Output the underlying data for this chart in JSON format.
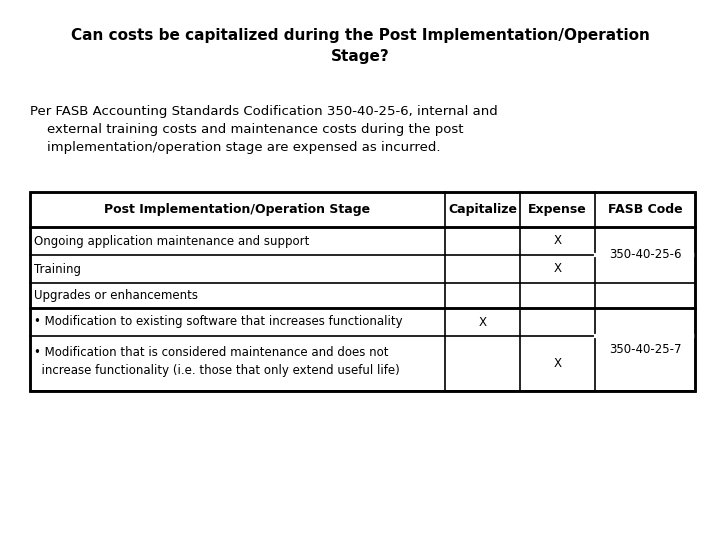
{
  "title": "Can costs be capitalized during the Post Implementation/Operation\nStage?",
  "intro_line1": "Per FASB Accounting Standards Codification 350-40-25-6, internal and",
  "intro_line2": "    external training costs and maintenance costs during the post",
  "intro_line3": "    implementation/operation stage are expensed as incurred.",
  "col_headers": [
    "Post Implementation/Operation Stage",
    "Capitalize",
    "Expense",
    "FASB Code"
  ],
  "row0_label": "Ongoing application maintenance and support",
  "row0_cap": "",
  "row0_exp": "X",
  "row1_label": "Training",
  "row1_cap": "",
  "row1_exp": "X",
  "row2_label": "Upgrades or enhancements",
  "row2_cap": "",
  "row2_exp": "",
  "row3_label": "• Modification to existing software that increases functionality",
  "row3_cap": "X",
  "row3_exp": "",
  "row4_label1": "• Modification that is considered maintenance and does not",
  "row4_label2": "  increase functionality (i.e. those that only extend useful life)",
  "row4_cap": "",
  "row4_exp": "X",
  "fasb_01": "350-40-25-6",
  "fasb_34": "350-40-25-7",
  "bg_color": "#ffffff",
  "text_color": "#000000",
  "title_fontsize": 11,
  "body_fontsize": 9.5,
  "table_fontsize": 8.5,
  "table_header_fontsize": 9.0
}
